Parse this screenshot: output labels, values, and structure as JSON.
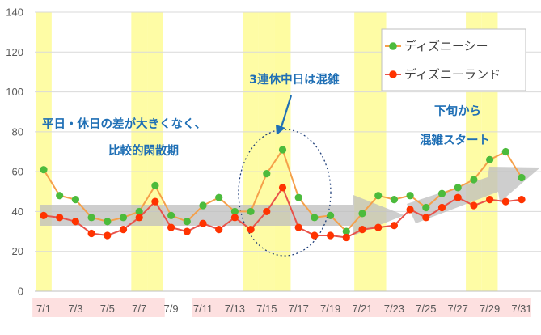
{
  "chart_data": {
    "type": "line",
    "ylim": [
      0,
      140
    ],
    "y_ticks": [
      "0",
      "20",
      "40",
      "60",
      "80",
      "100",
      "120",
      "140"
    ],
    "x": [
      "7/1",
      "7/2",
      "7/3",
      "7/4",
      "7/5",
      "7/6",
      "7/7",
      "7/8",
      "7/9",
      "7/10",
      "7/11",
      "7/12",
      "7/13",
      "7/14",
      "7/15",
      "7/16",
      "7/17",
      "7/18",
      "7/19",
      "7/20",
      "7/21",
      "7/22",
      "7/23",
      "7/24",
      "7/25",
      "7/26",
      "7/27",
      "7/28",
      "7/29",
      "7/30",
      "7/31"
    ],
    "x_tick_labels": [
      "7/1",
      "7/3",
      "7/5",
      "7/7",
      "7/9",
      "7/11",
      "7/13",
      "7/15",
      "7/17",
      "7/19",
      "7/21",
      "7/23",
      "7/25",
      "7/27",
      "7/29",
      "7/31"
    ],
    "weekend_dates": [
      "7/1",
      "7/7",
      "7/8",
      "7/14",
      "7/15",
      "7/16",
      "7/21",
      "7/22",
      "7/28",
      "7/29"
    ],
    "holiday_dates": [
      "7/16"
    ],
    "series": [
      {
        "name": "ディズニーシー",
        "color": "#f5a04a",
        "marker_color": "#4cbb3c",
        "values": [
          61,
          48,
          46,
          37,
          35,
          37,
          40,
          53,
          38,
          35,
          43,
          47,
          40,
          40,
          59,
          71,
          47,
          37,
          38,
          30,
          39,
          48,
          46,
          48,
          42,
          49,
          52,
          56,
          66,
          70,
          57
        ]
      },
      {
        "name": "ディズニーランド",
        "color": "#e8524a",
        "marker_color": "#ff3300",
        "values": [
          38,
          37,
          35,
          29,
          28,
          31,
          37,
          45,
          32,
          30,
          34,
          31,
          37,
          31,
          40,
          52,
          32,
          28,
          28,
          27,
          31,
          32,
          33,
          41,
          37,
          42,
          47,
          43,
          46,
          45,
          46
        ]
      }
    ],
    "grid": true,
    "legend_position": "top-right",
    "annotations": [
      {
        "text": "平日・休日の差が大きくなく、",
        "role": "period-note-1"
      },
      {
        "text": "比較的閑散期",
        "role": "period-note-2"
      },
      {
        "text": "3連休中日は混雑",
        "role": "holiday-note"
      },
      {
        "text": "下旬から",
        "role": "late-note-1"
      },
      {
        "text": "混雑スタート",
        "role": "late-note-2"
      }
    ]
  }
}
